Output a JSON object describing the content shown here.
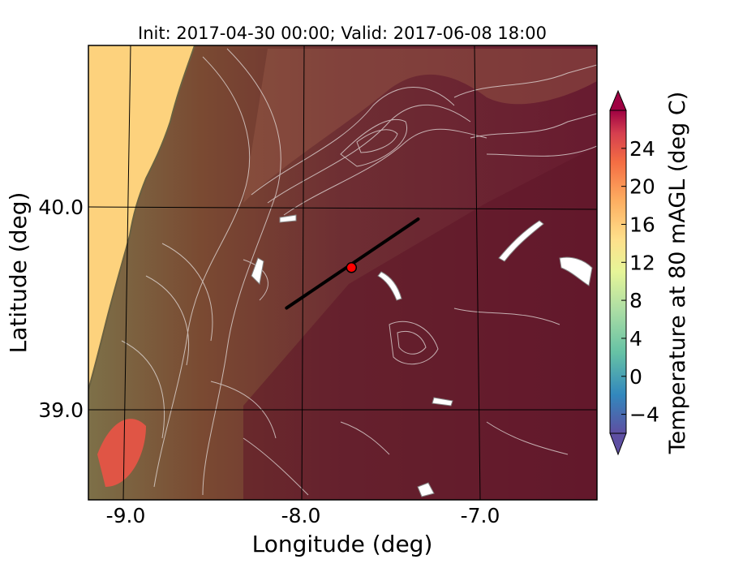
{
  "title": "Init: 2017-04-30 00:00; Valid: 2017-06-08 18:00",
  "map": {
    "xlabel": "Longitude (deg)",
    "ylabel": "Latitude (deg)",
    "lon_ticks": [
      "-9.0",
      "-8.0",
      "-7.0"
    ],
    "lat_ticks": [
      "40.0",
      "39.0"
    ],
    "lon_range": [
      -9.25,
      -6.35
    ],
    "lat_range": [
      38.55,
      40.8
    ],
    "ocean_color": "#fdd27d",
    "marker": {
      "lon": -7.75,
      "lat": 39.7,
      "color": "#ff0000"
    },
    "cross_section_line": {
      "start": {
        "lon": -8.12,
        "lat": 39.5
      },
      "end": {
        "lon": -7.37,
        "lat": 39.94
      }
    }
  },
  "colorbar": {
    "label": "Temperature at 80 mAGL (deg C)",
    "ticks": [
      "24",
      "20",
      "16",
      "12",
      "8",
      "4",
      "0",
      "−4"
    ],
    "tick_values": [
      24,
      20,
      16,
      12,
      8,
      4,
      0,
      -4
    ],
    "range": [
      -6,
      28
    ],
    "extend": "both"
  }
}
